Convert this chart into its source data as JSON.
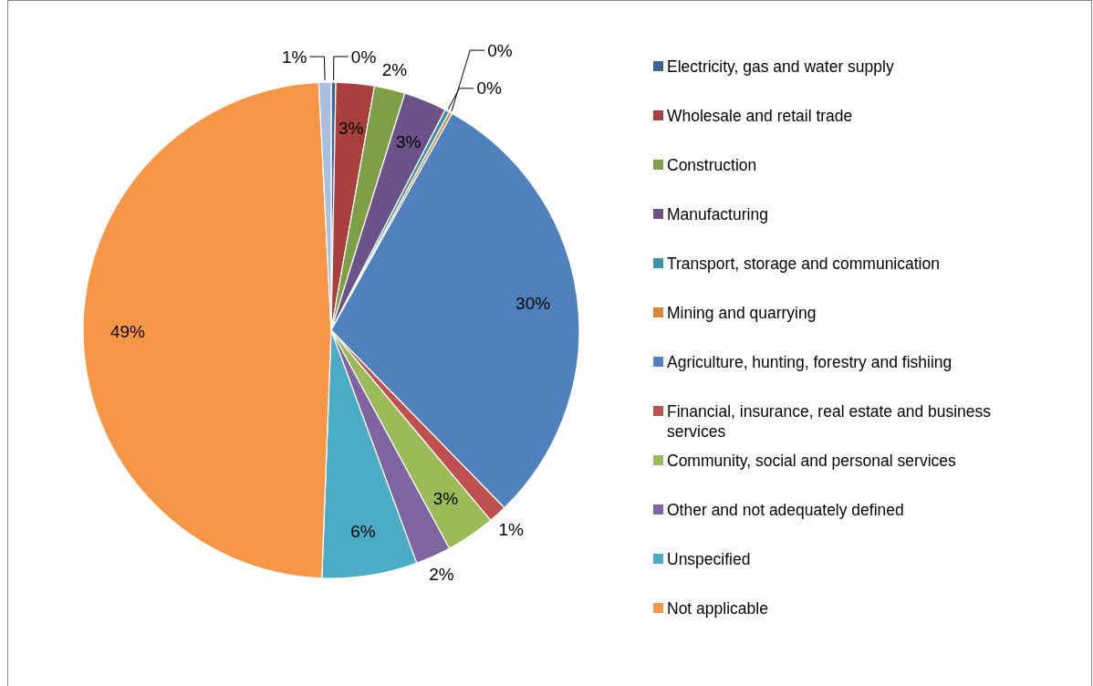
{
  "chart_data": {
    "type": "pie",
    "categories": [
      "Electricity, gas and water supply",
      "Wholesale and retail trade",
      "Construction",
      "Manufacturing",
      "Transport, storage and communication",
      "Mining and quarrying",
      "Agriculture, hunting, forestry and fishiing",
      "Financial, insurance, real estate and business services",
      "Community, social and personal services",
      "Other and not adequately defined",
      "Unspecified",
      "Not applicable",
      null
    ],
    "values": [
      0.3,
      2.5,
      2.0,
      2.8,
      0.3,
      0.2,
      29.6,
      1.2,
      3.2,
      2.3,
      6.2,
      48.6,
      0.8
    ],
    "value_labels": [
      "0%",
      "3%",
      "2%",
      "3%",
      "0%",
      "0%",
      "30%",
      "1%",
      "3%",
      "2%",
      "6%",
      "49%",
      "1%"
    ],
    "colors": [
      "#3d6594",
      "#a9403d",
      "#7f9f47",
      "#6b5289",
      "#3f93a8",
      "#d98538",
      "#4f81bd",
      "#c0504d",
      "#9bbb59",
      "#8064a2",
      "#4bacc6",
      "#f79646",
      "#aabee0"
    ],
    "legend": "right"
  }
}
